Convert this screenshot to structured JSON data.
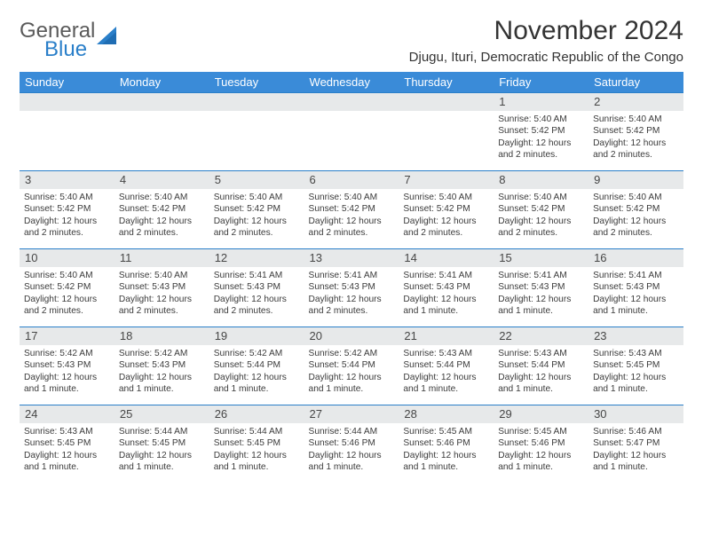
{
  "logo": {
    "general": "General",
    "blue": "Blue",
    "triangle_color": "#2a7fc9"
  },
  "header": {
    "title": "November 2024",
    "subtitle": "Djugu, Ituri, Democratic Republic of the Congo"
  },
  "colors": {
    "header_bg": "#3a8bd8",
    "daybar_bg": "#e7e9ea",
    "daybar_border": "#2a7fc9"
  },
  "weekdays": [
    "Sunday",
    "Monday",
    "Tuesday",
    "Wednesday",
    "Thursday",
    "Friday",
    "Saturday"
  ],
  "weeks": [
    [
      {
        "empty": true
      },
      {
        "empty": true
      },
      {
        "empty": true
      },
      {
        "empty": true
      },
      {
        "empty": true
      },
      {
        "day": "1",
        "sunrise": "Sunrise: 5:40 AM",
        "sunset": "Sunset: 5:42 PM",
        "daylight": "Daylight: 12 hours and 2 minutes."
      },
      {
        "day": "2",
        "sunrise": "Sunrise: 5:40 AM",
        "sunset": "Sunset: 5:42 PM",
        "daylight": "Daylight: 12 hours and 2 minutes."
      }
    ],
    [
      {
        "day": "3",
        "sunrise": "Sunrise: 5:40 AM",
        "sunset": "Sunset: 5:42 PM",
        "daylight": "Daylight: 12 hours and 2 minutes."
      },
      {
        "day": "4",
        "sunrise": "Sunrise: 5:40 AM",
        "sunset": "Sunset: 5:42 PM",
        "daylight": "Daylight: 12 hours and 2 minutes."
      },
      {
        "day": "5",
        "sunrise": "Sunrise: 5:40 AM",
        "sunset": "Sunset: 5:42 PM",
        "daylight": "Daylight: 12 hours and 2 minutes."
      },
      {
        "day": "6",
        "sunrise": "Sunrise: 5:40 AM",
        "sunset": "Sunset: 5:42 PM",
        "daylight": "Daylight: 12 hours and 2 minutes."
      },
      {
        "day": "7",
        "sunrise": "Sunrise: 5:40 AM",
        "sunset": "Sunset: 5:42 PM",
        "daylight": "Daylight: 12 hours and 2 minutes."
      },
      {
        "day": "8",
        "sunrise": "Sunrise: 5:40 AM",
        "sunset": "Sunset: 5:42 PM",
        "daylight": "Daylight: 12 hours and 2 minutes."
      },
      {
        "day": "9",
        "sunrise": "Sunrise: 5:40 AM",
        "sunset": "Sunset: 5:42 PM",
        "daylight": "Daylight: 12 hours and 2 minutes."
      }
    ],
    [
      {
        "day": "10",
        "sunrise": "Sunrise: 5:40 AM",
        "sunset": "Sunset: 5:42 PM",
        "daylight": "Daylight: 12 hours and 2 minutes."
      },
      {
        "day": "11",
        "sunrise": "Sunrise: 5:40 AM",
        "sunset": "Sunset: 5:43 PM",
        "daylight": "Daylight: 12 hours and 2 minutes."
      },
      {
        "day": "12",
        "sunrise": "Sunrise: 5:41 AM",
        "sunset": "Sunset: 5:43 PM",
        "daylight": "Daylight: 12 hours and 2 minutes."
      },
      {
        "day": "13",
        "sunrise": "Sunrise: 5:41 AM",
        "sunset": "Sunset: 5:43 PM",
        "daylight": "Daylight: 12 hours and 2 minutes."
      },
      {
        "day": "14",
        "sunrise": "Sunrise: 5:41 AM",
        "sunset": "Sunset: 5:43 PM",
        "daylight": "Daylight: 12 hours and 1 minute."
      },
      {
        "day": "15",
        "sunrise": "Sunrise: 5:41 AM",
        "sunset": "Sunset: 5:43 PM",
        "daylight": "Daylight: 12 hours and 1 minute."
      },
      {
        "day": "16",
        "sunrise": "Sunrise: 5:41 AM",
        "sunset": "Sunset: 5:43 PM",
        "daylight": "Daylight: 12 hours and 1 minute."
      }
    ],
    [
      {
        "day": "17",
        "sunrise": "Sunrise: 5:42 AM",
        "sunset": "Sunset: 5:43 PM",
        "daylight": "Daylight: 12 hours and 1 minute."
      },
      {
        "day": "18",
        "sunrise": "Sunrise: 5:42 AM",
        "sunset": "Sunset: 5:43 PM",
        "daylight": "Daylight: 12 hours and 1 minute."
      },
      {
        "day": "19",
        "sunrise": "Sunrise: 5:42 AM",
        "sunset": "Sunset: 5:44 PM",
        "daylight": "Daylight: 12 hours and 1 minute."
      },
      {
        "day": "20",
        "sunrise": "Sunrise: 5:42 AM",
        "sunset": "Sunset: 5:44 PM",
        "daylight": "Daylight: 12 hours and 1 minute."
      },
      {
        "day": "21",
        "sunrise": "Sunrise: 5:43 AM",
        "sunset": "Sunset: 5:44 PM",
        "daylight": "Daylight: 12 hours and 1 minute."
      },
      {
        "day": "22",
        "sunrise": "Sunrise: 5:43 AM",
        "sunset": "Sunset: 5:44 PM",
        "daylight": "Daylight: 12 hours and 1 minute."
      },
      {
        "day": "23",
        "sunrise": "Sunrise: 5:43 AM",
        "sunset": "Sunset: 5:45 PM",
        "daylight": "Daylight: 12 hours and 1 minute."
      }
    ],
    [
      {
        "day": "24",
        "sunrise": "Sunrise: 5:43 AM",
        "sunset": "Sunset: 5:45 PM",
        "daylight": "Daylight: 12 hours and 1 minute."
      },
      {
        "day": "25",
        "sunrise": "Sunrise: 5:44 AM",
        "sunset": "Sunset: 5:45 PM",
        "daylight": "Daylight: 12 hours and 1 minute."
      },
      {
        "day": "26",
        "sunrise": "Sunrise: 5:44 AM",
        "sunset": "Sunset: 5:45 PM",
        "daylight": "Daylight: 12 hours and 1 minute."
      },
      {
        "day": "27",
        "sunrise": "Sunrise: 5:44 AM",
        "sunset": "Sunset: 5:46 PM",
        "daylight": "Daylight: 12 hours and 1 minute."
      },
      {
        "day": "28",
        "sunrise": "Sunrise: 5:45 AM",
        "sunset": "Sunset: 5:46 PM",
        "daylight": "Daylight: 12 hours and 1 minute."
      },
      {
        "day": "29",
        "sunrise": "Sunrise: 5:45 AM",
        "sunset": "Sunset: 5:46 PM",
        "daylight": "Daylight: 12 hours and 1 minute."
      },
      {
        "day": "30",
        "sunrise": "Sunrise: 5:46 AM",
        "sunset": "Sunset: 5:47 PM",
        "daylight": "Daylight: 12 hours and 1 minute."
      }
    ]
  ]
}
